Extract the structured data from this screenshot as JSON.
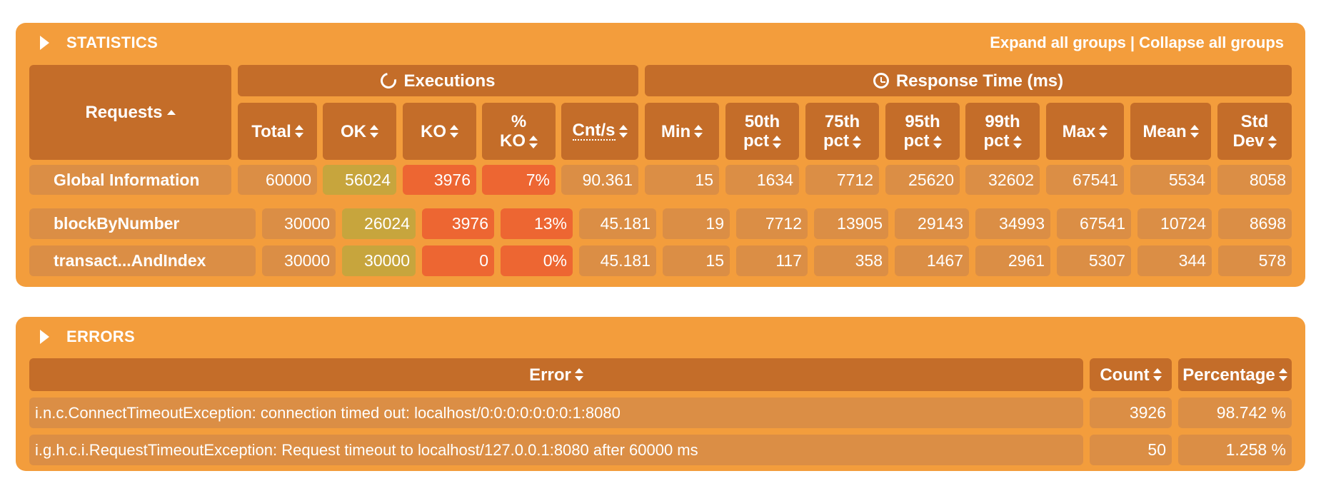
{
  "statistics": {
    "title": "STATISTICS",
    "expand_label": "Expand all groups",
    "separator": "|",
    "collapse_label": "Collapse all groups",
    "headers": {
      "requests": "Requests",
      "executions": "Executions",
      "response_time": "Response Time (ms)",
      "total": "Total",
      "ok": "OK",
      "ko": "KO",
      "pct_ko_line1": "%",
      "pct_ko_line2": "KO",
      "cnt_s": "Cnt/s",
      "min": "Min",
      "p50_line1": "50th",
      "p50_line2": "pct",
      "p75_line1": "75th",
      "p75_line2": "pct",
      "p95_line1": "95th",
      "p95_line2": "pct",
      "p99_line1": "99th",
      "p99_line2": "pct",
      "max": "Max",
      "mean": "Mean",
      "std_line1": "Std",
      "std_line2": "Dev"
    },
    "rows": [
      {
        "name": "Global Information",
        "total": "60000",
        "ok": "56024",
        "ko": "3976",
        "pct_ko": "7%",
        "cnt_s": "90.361",
        "min": "15",
        "p50": "1634",
        "p75": "7712",
        "p95": "25620",
        "p99": "32602",
        "max": "67541",
        "mean": "5534",
        "std": "8058"
      },
      {
        "name": "blockByNumber",
        "total": "30000",
        "ok": "26024",
        "ko": "3976",
        "pct_ko": "13%",
        "cnt_s": "45.181",
        "min": "19",
        "p50": "7712",
        "p75": "13905",
        "p95": "29143",
        "p99": "34993",
        "max": "67541",
        "mean": "10724",
        "std": "8698"
      },
      {
        "name": "transact...AndIndex",
        "total": "30000",
        "ok": "30000",
        "ko": "0",
        "pct_ko": "0%",
        "cnt_s": "45.181",
        "min": "15",
        "p50": "117",
        "p75": "358",
        "p95": "1467",
        "p99": "2961",
        "max": "5307",
        "mean": "344",
        "std": "578"
      }
    ]
  },
  "errors": {
    "title": "ERRORS",
    "headers": {
      "error": "Error",
      "count": "Count",
      "percentage": "Percentage"
    },
    "rows": [
      {
        "error": "i.n.c.ConnectTimeoutException: connection timed out: localhost/0:0:0:0:0:0:0:1:8080",
        "count": "3926",
        "percentage": "98.742 %"
      },
      {
        "error": "i.g.h.c.i.RequestTimeoutException: Request timeout to localhost/127.0.0.1:8080 after 60000 ms",
        "count": "50",
        "percentage": "1.258 %"
      }
    ]
  },
  "colors": {
    "panel": "#f39d3c",
    "header_cell": "#c46d29",
    "data_cell": "#db8e45",
    "ok_cell": "#c7a53d",
    "ko_cell": "#ed6632",
    "text": "#ffffff"
  },
  "icons": {
    "panel_toggle": "triangle-right-icon",
    "executions": "refresh-icon",
    "response_time": "clock-icon",
    "sortable": "sort-arrows-icon",
    "sorted_asc": "sort-up-icon"
  }
}
